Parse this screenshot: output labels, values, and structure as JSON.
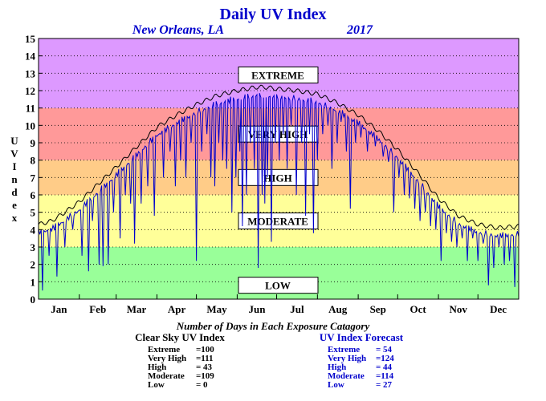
{
  "chart_data": {
    "type": "line",
    "title": "Daily UV Index",
    "location": "New Orleans, LA",
    "year": "2017",
    "ylabel": "UV Index",
    "ylim": [
      0,
      15
    ],
    "yticks": [
      0,
      1,
      2,
      3,
      4,
      5,
      6,
      7,
      8,
      9,
      10,
      11,
      12,
      13,
      14,
      15
    ],
    "xlim": [
      0,
      365
    ],
    "months": [
      "Jan",
      "Feb",
      "Mar",
      "Apr",
      "May",
      "Jun",
      "Jul",
      "Aug",
      "Sep",
      "Oct",
      "Nov",
      "Dec"
    ],
    "month_starts": [
      0,
      31,
      59,
      90,
      120,
      151,
      181,
      212,
      243,
      273,
      304,
      334
    ],
    "grid": true,
    "bands": [
      {
        "label": "LOW",
        "from": 0,
        "to": 3,
        "color": "#99ff99"
      },
      {
        "label": "MODERATE",
        "from": 3,
        "to": 6,
        "color": "#ffff99"
      },
      {
        "label": "HIGH",
        "from": 6,
        "to": 8,
        "color": "#ffcc88"
      },
      {
        "label": "VERY HIGH",
        "from": 8,
        "to": 11,
        "color": "#ff9999"
      },
      {
        "label": "EXTREME",
        "from": 11,
        "to": 15,
        "color": "#dd99ff"
      }
    ],
    "band_label_values": [
      0.8,
      4.5,
      7.0,
      9.5,
      12.9
    ],
    "clear_sky": {
      "name": "Clear Sky UV Index",
      "color": "#000000",
      "x": [
        0,
        10,
        20,
        31,
        45,
        59,
        75,
        90,
        105,
        120,
        135,
        151,
        166,
        172,
        181,
        196,
        212,
        227,
        243,
        258,
        273,
        288,
        304,
        319,
        334,
        349,
        365
      ],
      "y": [
        4.3,
        4.5,
        5.0,
        5.6,
        6.6,
        7.6,
        8.8,
        9.9,
        10.6,
        11.2,
        11.7,
        12.0,
        12.2,
        12.2,
        12.1,
        12.0,
        11.8,
        11.3,
        10.6,
        9.7,
        8.6,
        7.3,
        5.8,
        4.8,
        4.3,
        4.1,
        4.2
      ]
    },
    "forecast": {
      "name": "UV Index Forecast",
      "color": "#0000cc",
      "dips": [
        [
          3,
          0.5
        ],
        [
          8,
          2.5
        ],
        [
          14,
          1.3
        ],
        [
          20,
          3.0
        ],
        [
          26,
          4.0
        ],
        [
          33,
          2.5
        ],
        [
          38,
          1.6
        ],
        [
          41,
          4.5
        ],
        [
          46,
          2.0
        ],
        [
          49,
          1.9
        ],
        [
          53,
          2.0
        ],
        [
          57,
          5.0
        ],
        [
          62,
          3.5
        ],
        [
          66,
          6.0
        ],
        [
          70,
          5.5
        ],
        [
          73,
          3.2
        ],
        [
          78,
          5.5
        ],
        [
          83,
          6.5
        ],
        [
          88,
          4.8
        ],
        [
          95,
          7.0
        ],
        [
          100,
          8.5
        ],
        [
          104,
          6.5
        ],
        [
          108,
          8.0
        ],
        [
          112,
          7.0
        ],
        [
          116,
          9.0
        ],
        [
          120,
          2.2
        ],
        [
          124,
          8.5
        ],
        [
          128,
          9.5
        ],
        [
          131,
          7.0
        ],
        [
          134,
          6.5
        ],
        [
          137,
          9.0
        ],
        [
          140,
          8.0
        ],
        [
          143,
          7.5
        ],
        [
          147,
          5.0
        ],
        [
          150,
          7.0
        ],
        [
          153,
          8.5
        ],
        [
          155,
          4.2
        ],
        [
          158,
          6.0
        ],
        [
          161,
          9.0
        ],
        [
          164,
          7.5
        ],
        [
          167,
          1.8
        ],
        [
          170,
          6.0
        ],
        [
          172,
          5.5
        ],
        [
          174,
          7.0
        ],
        [
          177,
          3.3
        ],
        [
          180,
          9.0
        ],
        [
          183,
          8.0
        ],
        [
          186,
          9.5
        ],
        [
          189,
          7.5
        ],
        [
          192,
          10.0
        ],
        [
          196,
          6.0
        ],
        [
          200,
          9.0
        ],
        [
          203,
          4.8
        ],
        [
          206,
          9.5
        ],
        [
          209,
          3.8
        ],
        [
          212,
          8.0
        ],
        [
          216,
          9.5
        ],
        [
          220,
          10.0
        ],
        [
          223,
          7.5
        ],
        [
          227,
          9.0
        ],
        [
          230,
          10.2
        ],
        [
          234,
          8.5
        ],
        [
          237,
          5.2
        ],
        [
          241,
          9.0
        ],
        [
          245,
          9.3
        ],
        [
          250,
          8.5
        ],
        [
          256,
          8.8
        ],
        [
          262,
          8.2
        ],
        [
          266,
          7.9
        ],
        [
          270,
          5.0
        ],
        [
          274,
          7.0
        ],
        [
          278,
          6.0
        ],
        [
          282,
          5.8
        ],
        [
          286,
          5.2
        ],
        [
          290,
          4.5
        ],
        [
          294,
          5.0
        ],
        [
          298,
          4.2
        ],
        [
          302,
          4.0
        ],
        [
          306,
          2.2
        ],
        [
          310,
          3.8
        ],
        [
          314,
          3.3
        ],
        [
          318,
          3.0
        ],
        [
          322,
          3.5
        ],
        [
          326,
          2.2
        ],
        [
          330,
          3.5
        ],
        [
          334,
          2.2
        ],
        [
          338,
          3.2
        ],
        [
          342,
          0.8
        ],
        [
          346,
          1.8
        ],
        [
          350,
          3.0
        ],
        [
          354,
          2.0
        ],
        [
          358,
          2.2
        ],
        [
          362,
          0.7
        ]
      ]
    },
    "annotation": "Number of Days in Each Exposure Catagory",
    "counts_clear": {
      "title": "Clear Sky UV Index",
      "rows": [
        {
          "label": "Extreme",
          "value": "=100"
        },
        {
          "label": "Very High",
          "value": "=111"
        },
        {
          "label": "High",
          "value": "= 43"
        },
        {
          "label": "Moderate",
          "value": "=109"
        },
        {
          "label": "Low",
          "value": "= 0"
        }
      ]
    },
    "counts_forecast": {
      "title": "UV Index Forecast",
      "rows": [
        {
          "label": "Extreme",
          "value": "= 54"
        },
        {
          "label": "Very High",
          "value": "=124"
        },
        {
          "label": "High",
          "value": "= 44"
        },
        {
          "label": "Moderate",
          "value": "=114"
        },
        {
          "label": "Low",
          "value": "= 27"
        }
      ]
    }
  }
}
